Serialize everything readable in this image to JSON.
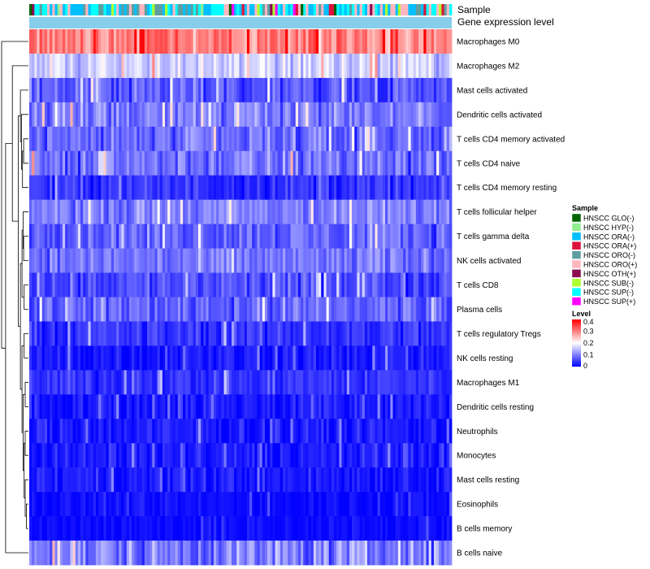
{
  "chart_data": {
    "type": "heatmap",
    "title": "",
    "n_samples": 165,
    "value_range": [
      0,
      0.4
    ],
    "color_scale": [
      {
        "value": 0,
        "color": "#0000ff"
      },
      {
        "value": 0.2,
        "color": "#ffffff"
      },
      {
        "value": 0.4,
        "color": "#ff0000"
      }
    ],
    "annotation_tracks": [
      {
        "name": "Sample",
        "label": "Sample"
      },
      {
        "name": "Gene expression level",
        "label": "Gene expression level",
        "color": "#87ceeb"
      }
    ],
    "rows": [
      {
        "name": "Macrophages M0",
        "mean": 0.3,
        "spread": 0.1
      },
      {
        "name": "Macrophages M2",
        "mean": 0.16,
        "spread": 0.07
      },
      {
        "name": "Mast cells activated",
        "mean": 0.07,
        "spread": 0.08
      },
      {
        "name": "Dendritic cells activated",
        "mean": 0.1,
        "spread": 0.08
      },
      {
        "name": "T cells CD4 memory activated",
        "mean": 0.08,
        "spread": 0.08
      },
      {
        "name": "T cells CD4 naive",
        "mean": 0.09,
        "spread": 0.09
      },
      {
        "name": "T cells CD4 memory resting",
        "mean": 0.04,
        "spread": 0.06
      },
      {
        "name": "T cells follicular helper",
        "mean": 0.1,
        "spread": 0.07
      },
      {
        "name": "T cells gamma delta",
        "mean": 0.08,
        "spread": 0.07
      },
      {
        "name": "NK cells activated",
        "mean": 0.09,
        "spread": 0.07
      },
      {
        "name": "T cells CD8",
        "mean": 0.06,
        "spread": 0.07
      },
      {
        "name": "Plasma cells",
        "mean": 0.08,
        "spread": 0.08
      },
      {
        "name": "T cells regulatory  Tregs",
        "mean": 0.04,
        "spread": 0.06
      },
      {
        "name": "NK cells resting",
        "mean": 0.02,
        "spread": 0.05
      },
      {
        "name": "Macrophages M1",
        "mean": 0.04,
        "spread": 0.05
      },
      {
        "name": "Dendritic cells resting",
        "mean": 0.02,
        "spread": 0.05
      },
      {
        "name": "Neutrophils",
        "mean": 0.02,
        "spread": 0.05
      },
      {
        "name": "Monocytes",
        "mean": 0.02,
        "spread": 0.05
      },
      {
        "name": "Mast cells resting",
        "mean": 0.02,
        "spread": 0.05
      },
      {
        "name": "Eosinophils",
        "mean": 0.01,
        "spread": 0.03
      },
      {
        "name": "B cells memory",
        "mean": 0.01,
        "spread": 0.03
      },
      {
        "name": "B cells naive",
        "mean": 0.1,
        "spread": 0.1
      }
    ],
    "row_dendrogram": [
      {
        "id": 100,
        "left": 19,
        "right": 20,
        "height": 0.08
      },
      {
        "id": 101,
        "left": 18,
        "right": 100,
        "height": 0.12
      },
      {
        "id": 102,
        "left": 16,
        "right": 17,
        "height": 0.12
      },
      {
        "id": 103,
        "left": 102,
        "right": 101,
        "height": 0.16
      },
      {
        "id": 104,
        "left": 14,
        "right": 15,
        "height": 0.12
      },
      {
        "id": 105,
        "left": 104,
        "right": 103,
        "height": 0.2
      },
      {
        "id": 106,
        "left": 12,
        "right": 13,
        "height": 0.16
      },
      {
        "id": 107,
        "left": 106,
        "right": 105,
        "height": 0.24
      },
      {
        "id": 108,
        "left": 10,
        "right": 11,
        "height": 0.16
      },
      {
        "id": 109,
        "left": 8,
        "right": 9,
        "height": 0.18
      },
      {
        "id": 110,
        "left": 7,
        "right": 109,
        "height": 0.2
      },
      {
        "id": 111,
        "left": 110,
        "right": 108,
        "height": 0.24
      },
      {
        "id": 112,
        "left": 111,
        "right": 107,
        "height": 0.3
      },
      {
        "id": 113,
        "left": 4,
        "right": 5,
        "height": 0.18
      },
      {
        "id": 114,
        "left": 113,
        "right": 6,
        "height": 0.22
      },
      {
        "id": 115,
        "left": 3,
        "right": 114,
        "height": 0.26
      },
      {
        "id": 116,
        "left": 2,
        "right": 115,
        "height": 0.3
      },
      {
        "id": 117,
        "left": 116,
        "right": 112,
        "height": 0.38
      },
      {
        "id": 118,
        "left": 1,
        "right": 117,
        "height": 0.6
      },
      {
        "id": 119,
        "left": 118,
        "right": 21,
        "height": 0.85
      },
      {
        "id": 120,
        "left": 0,
        "right": 119,
        "height": 1.0
      }
    ],
    "legend_sample": {
      "title": "Sample",
      "items": [
        {
          "label": "HNSCC GLO(-)",
          "color": "#006400"
        },
        {
          "label": "HNSCC HYP(-)",
          "color": "#90ee90"
        },
        {
          "label": "HNSCC ORA(-)",
          "color": "#00bfff"
        },
        {
          "label": "HNSCC ORA(+)",
          "color": "#dc143c"
        },
        {
          "label": "HNSCC ORO(-)",
          "color": "#5f9ea0"
        },
        {
          "label": "HNSCC ORO(+)",
          "color": "#ffb6c1"
        },
        {
          "label": "HNSCC OTH(+)",
          "color": "#8b0a50"
        },
        {
          "label": "HNSCC SUB(-)",
          "color": "#adff2f"
        },
        {
          "label": "HNSCC SUP(-)",
          "color": "#00ffff"
        },
        {
          "label": "HNSCC SUP(+)",
          "color": "#ff00ff"
        }
      ]
    },
    "legend_level": {
      "title": "Level",
      "ticks": [
        "0.4",
        "0.3",
        "0.2",
        "0.1",
        "0"
      ],
      "tick_values": [
        0.4,
        0.3,
        0.2,
        0.1,
        0
      ]
    }
  }
}
